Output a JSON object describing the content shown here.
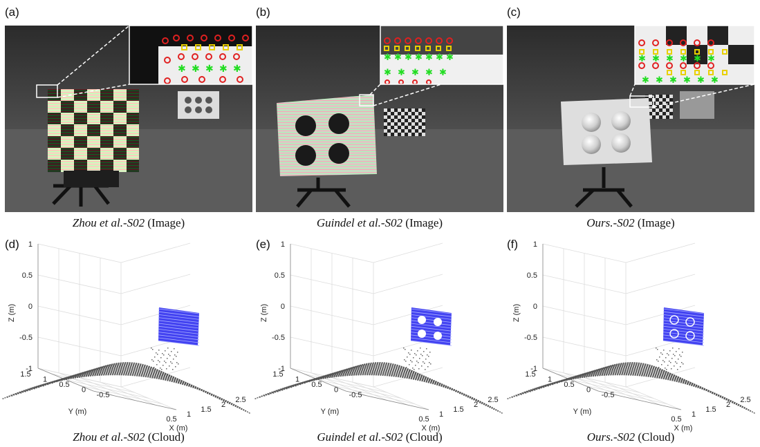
{
  "figure": {
    "panels": [
      {
        "letter": "(a)",
        "caption_italic": "Zhou et al.-S02",
        "caption_plain": " (Image)"
      },
      {
        "letter": "(b)",
        "caption_italic": "Guindel et al.-S02",
        "caption_plain": " (Image)"
      },
      {
        "letter": "(c)",
        "caption_italic": "Ours.-S02",
        "caption_plain": " (Image)"
      },
      {
        "letter": "(d)",
        "caption_italic": "Zhou et al.-S02",
        "caption_plain": " (Cloud)"
      },
      {
        "letter": "(e)",
        "caption_italic": "Guindel et al.-S02",
        "caption_plain": " (Cloud)"
      },
      {
        "letter": "(f)",
        "caption_italic": "Ours.-S02",
        "caption_plain": " (Cloud)"
      }
    ],
    "plot_axes": {
      "z_label": "Z (m)",
      "y_label": "Y (m)",
      "x_label": "X (m)",
      "z_ticks": [
        "1",
        "0.5",
        "0",
        "-0.5",
        "-1"
      ],
      "y_ticks": [
        "1.5",
        "1",
        "0.5",
        "0",
        "-0.5"
      ],
      "x_ticks": [
        "0.5",
        "1",
        "1.5",
        "2",
        "2.5"
      ]
    },
    "colors": {
      "target_points": "#2222ee",
      "ground_points": "#555555",
      "marker_red": "#e02020",
      "marker_yellow": "#e8d000",
      "marker_green": "#22dd22"
    }
  }
}
